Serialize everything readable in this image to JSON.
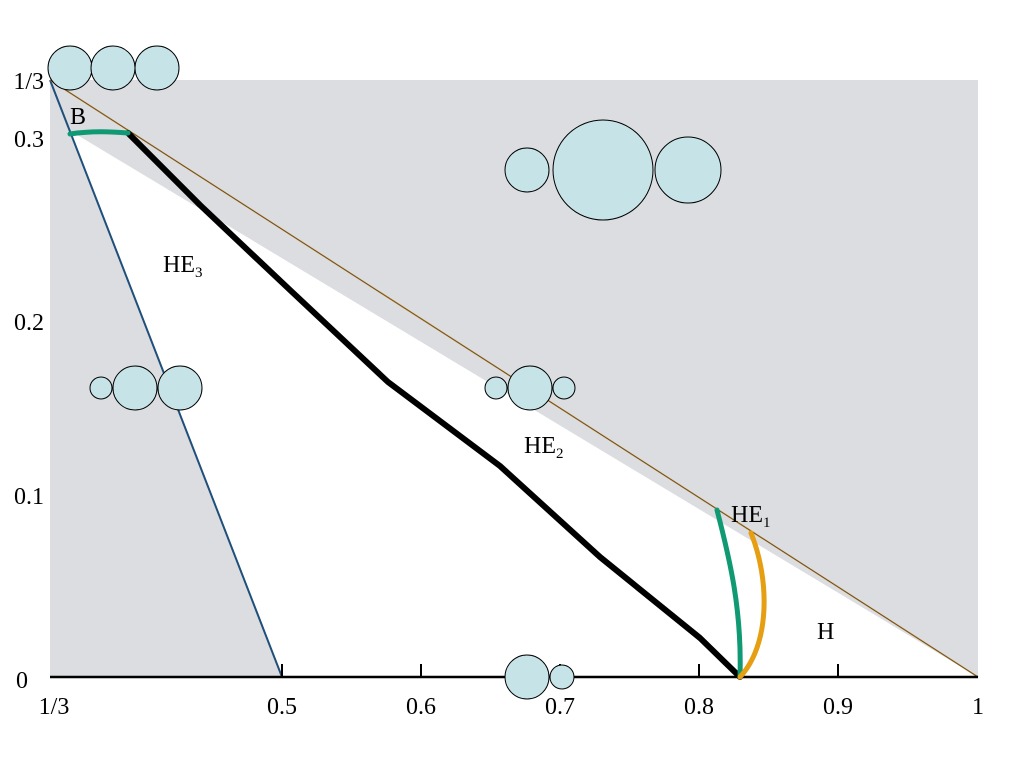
{
  "colors": {
    "gray_region": "#dcdde0",
    "white_region": "#ffffff",
    "bubble_fill": "#c6e4e8",
    "green_curve": "#109a74",
    "orange_curve": "#e69e12",
    "blue_line": "#1f4f7a",
    "black_curve": "#000000",
    "hypotenuse": "#c9871f"
  },
  "axes": {
    "x_ticks": [
      {
        "value": 0.3333,
        "label": "1/3"
      },
      {
        "value": 0.5,
        "label": "0.5"
      },
      {
        "value": 0.6,
        "label": "0.6"
      },
      {
        "value": 0.7,
        "label": "0.7"
      },
      {
        "value": 0.8,
        "label": "0.8"
      },
      {
        "value": 0.9,
        "label": "0.9"
      },
      {
        "value": 1.0,
        "label": "1"
      }
    ],
    "y_ticks": [
      {
        "value": 0.0,
        "label": "0"
      },
      {
        "value": 0.1,
        "label": "0.1"
      },
      {
        "value": 0.2,
        "label": "0.2"
      },
      {
        "value": 0.3,
        "label": "0.3"
      },
      {
        "value": 0.3333,
        "label": "1/3"
      }
    ]
  },
  "regions": {
    "B": {
      "main": "B",
      "sub": ""
    },
    "HE3": {
      "main": "HE",
      "sub": "3"
    },
    "HE2": {
      "main": "HE",
      "sub": "2"
    },
    "HE1": {
      "main": "HE",
      "sub": "1"
    },
    "H": {
      "main": "H",
      "sub": ""
    }
  }
}
